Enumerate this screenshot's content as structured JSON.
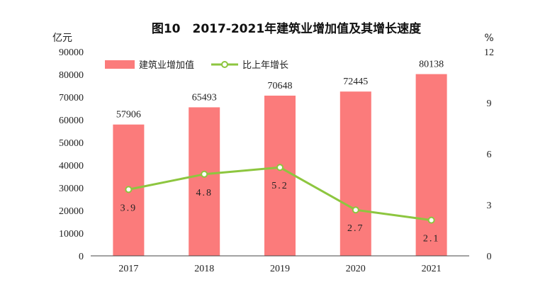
{
  "chart_data": {
    "type": "bar",
    "title": "图10　2017-2021年建筑业增加值及其增长速度",
    "categories": [
      "2017",
      "2018",
      "2019",
      "2020",
      "2021"
    ],
    "series": [
      {
        "name": "建筑业增加值",
        "type": "bar",
        "axis": "left",
        "values": [
          57906,
          65493,
          70648,
          72445,
          80138
        ],
        "color": "#fb7b7b"
      },
      {
        "name": "比上年增长",
        "type": "line",
        "axis": "right",
        "values": [
          3.9,
          4.8,
          5.2,
          2.7,
          2.1
        ],
        "labels": [
          "3.9",
          "4.8",
          "5.2",
          "2.7",
          "2.1"
        ],
        "color": "#8dc63f"
      }
    ],
    "y_left": {
      "unit": "亿元",
      "min": 0,
      "max": 90000,
      "ticks": [
        "0",
        "10000",
        "20000",
        "30000",
        "40000",
        "50000",
        "60000",
        "70000",
        "80000",
        "90000"
      ]
    },
    "y_right": {
      "unit": "%",
      "min": 0,
      "max": 12,
      "ticks": [
        "0",
        "3",
        "6",
        "9",
        "12"
      ]
    },
    "legend_position": "top-left",
    "grid": false
  }
}
